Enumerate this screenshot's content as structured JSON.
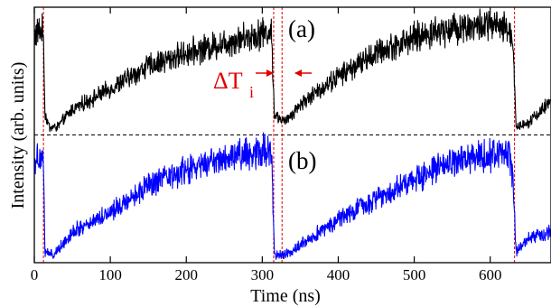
{
  "chart_data": {
    "type": "line",
    "xlabel": "Time (ns)",
    "ylabel": "Intensity (arb. units)",
    "xlim": [
      0,
      680
    ],
    "ylim": [
      0,
      1
    ],
    "x_ticks": [
      0,
      100,
      200,
      300,
      400,
      500,
      600
    ],
    "y_ticks_shown": false,
    "grid": false,
    "legend": "none",
    "series": [
      {
        "panel": "(a)",
        "color": "#000000",
        "baseline_level": 0.5,
        "period_ns": 310,
        "drop_times_ns": [
          12,
          315,
          632
        ],
        "envelope_points": [
          [
            0,
            0.89
          ],
          [
            8,
            0.91
          ],
          [
            12,
            0.9
          ],
          [
            14,
            0.58
          ],
          [
            20,
            0.53
          ],
          [
            30,
            0.53
          ],
          [
            50,
            0.6
          ],
          [
            100,
            0.68
          ],
          [
            150,
            0.77
          ],
          [
            200,
            0.82
          ],
          [
            250,
            0.86
          ],
          [
            300,
            0.9
          ],
          [
            312,
            0.9
          ],
          [
            316,
            0.58
          ],
          [
            330,
            0.55
          ],
          [
            350,
            0.62
          ],
          [
            400,
            0.73
          ],
          [
            450,
            0.82
          ],
          [
            500,
            0.88
          ],
          [
            550,
            0.92
          ],
          [
            600,
            0.93
          ],
          [
            625,
            0.91
          ],
          [
            630,
            0.87
          ],
          [
            634,
            0.53
          ],
          [
            650,
            0.55
          ],
          [
            680,
            0.63
          ]
        ]
      },
      {
        "panel": "(b)",
        "color": "#0000ff",
        "baseline_level": 0.0,
        "period_ns": 310,
        "drop_times_ns": [
          12,
          315,
          632
        ],
        "envelope_points": [
          [
            0,
            0.4
          ],
          [
            8,
            0.42
          ],
          [
            12,
            0.41
          ],
          [
            14,
            0.04
          ],
          [
            25,
            0.03
          ],
          [
            50,
            0.12
          ],
          [
            100,
            0.2
          ],
          [
            150,
            0.3
          ],
          [
            200,
            0.36
          ],
          [
            250,
            0.41
          ],
          [
            300,
            0.44
          ],
          [
            312,
            0.44
          ],
          [
            316,
            0.03
          ],
          [
            330,
            0.03
          ],
          [
            350,
            0.07
          ],
          [
            400,
            0.17
          ],
          [
            450,
            0.25
          ],
          [
            500,
            0.33
          ],
          [
            550,
            0.39
          ],
          [
            600,
            0.42
          ],
          [
            625,
            0.43
          ],
          [
            630,
            0.32
          ],
          [
            634,
            0.04
          ],
          [
            650,
            0.1
          ],
          [
            680,
            0.12
          ]
        ]
      }
    ],
    "dashed_line": {
      "y": 0.5,
      "color": "#000000"
    },
    "vertical_markers_ns": [
      12,
      315,
      326,
      632
    ],
    "marker_color": "#e00000",
    "annotations": [
      {
        "text": "(a)",
        "panel": "a"
      },
      {
        "text": "(b)",
        "panel": "b"
      },
      {
        "text": "ΔT",
        "subscript": "i",
        "color": "#e00000"
      }
    ]
  }
}
